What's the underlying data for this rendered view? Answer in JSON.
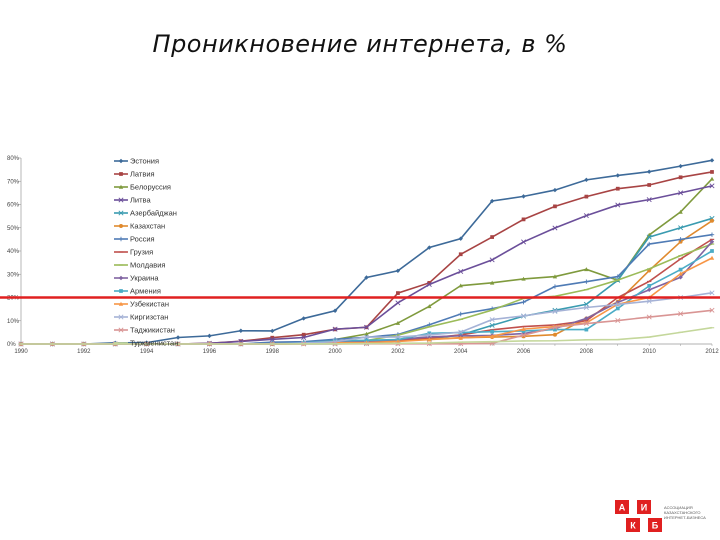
{
  "title": "Проникновение интернета, в %",
  "logo": {
    "letters": [
      "А",
      "И",
      "К",
      "Б"
    ],
    "text": "Ассоциация казахстанского интернет-бизнеса"
  },
  "threshold_color": "#e02020",
  "chart_data": {
    "type": "line",
    "title": "Проникновение интернета, в %",
    "xlabel": "",
    "ylabel": "",
    "xlim": [
      1990,
      2012
    ],
    "ylim": [
      0,
      80
    ],
    "x_ticks": [
      1990,
      1992,
      1994,
      1996,
      1998,
      2000,
      2002,
      2004,
      2006,
      2008,
      2010,
      2012
    ],
    "y_ticks": [
      "0%",
      "10%",
      "20%",
      "30%",
      "40%",
      "50%",
      "60%",
      "70%",
      "80%"
    ],
    "y_tick_values": [
      0,
      10,
      20,
      30,
      40,
      50,
      60,
      70,
      80
    ],
    "grid": false,
    "legend_position": "top-left inside plot",
    "reference_line": {
      "y": 20,
      "color": "#e02020"
    },
    "x": [
      1990,
      1991,
      1992,
      1993,
      1994,
      1995,
      1996,
      1997,
      1998,
      1999,
      2000,
      2001,
      2002,
      2003,
      2004,
      2005,
      2006,
      2007,
      2008,
      2009,
      2010,
      2011,
      2012
    ],
    "series": [
      {
        "name": "Эстония",
        "color": "#3d6a99",
        "marker": "diamond",
        "values": [
          0,
          0,
          0,
          0.5,
          0.6,
          2.8,
          3.5,
          5.7,
          5.6,
          11,
          14.3,
          28.6,
          31.5,
          41.5,
          45.3,
          61.5,
          63.5,
          66.2,
          70.6,
          72.5,
          74.1,
          76.5,
          79
        ]
      },
      {
        "name": "Латвия",
        "color": "#a84444",
        "marker": "square",
        "values": [
          0,
          0,
          0,
          0,
          0,
          0,
          0.3,
          1.2,
          2.7,
          4,
          6.3,
          7.2,
          21.9,
          26.3,
          38.6,
          46,
          53.6,
          59.2,
          63.4,
          66.8,
          68.4,
          71.7,
          74
        ]
      },
      {
        "name": "Белоруссия",
        "color": "#7f9a3d",
        "marker": "triangle",
        "values": [
          0,
          0,
          0,
          0,
          0,
          0,
          0,
          0,
          0,
          0.5,
          1.9,
          4.3,
          9,
          16.2,
          25.1,
          26.3,
          28,
          29,
          32.1,
          27.4,
          46.9,
          56.8,
          71
        ]
      },
      {
        "name": "Литва",
        "color": "#6b4f9a",
        "marker": "x",
        "values": [
          0,
          0,
          0,
          0,
          0,
          0,
          0.3,
          1.1,
          2,
          2.8,
          6.4,
          7.2,
          17.7,
          25.6,
          31.2,
          36.2,
          43.9,
          49.9,
          55.2,
          59.8,
          62.1,
          65,
          68
        ]
      },
      {
        "name": "Азербайджан",
        "color": "#3a9bb0",
        "marker": "x",
        "values": [
          0,
          0,
          0,
          0,
          0,
          0,
          0,
          0,
          0,
          0.1,
          0.1,
          0.3,
          1.5,
          2.2,
          3.9,
          8,
          12,
          14.5,
          17.1,
          27.4,
          46,
          50,
          54
        ]
      },
      {
        "name": "Казахстан",
        "color": "#e08a2e",
        "marker": "circle",
        "values": [
          0,
          0,
          0,
          0,
          0,
          0,
          0,
          0,
          0,
          0.5,
          0.7,
          1,
          1.7,
          2,
          2.7,
          3,
          3.3,
          4,
          11,
          18.2,
          31.6,
          44,
          53
        ]
      },
      {
        "name": "Россия",
        "color": "#4f7bb5",
        "marker": "plus",
        "values": [
          0,
          0,
          0,
          0,
          0,
          0,
          0,
          0,
          0.8,
          1,
          2,
          2.9,
          4.1,
          8.3,
          12.9,
          15.2,
          18,
          24.7,
          26.8,
          29,
          43,
          45,
          47
        ]
      },
      {
        "name": "Грузия",
        "color": "#c0504d",
        "marker": "dash",
        "values": [
          0,
          0,
          0,
          0,
          0,
          0,
          0,
          0,
          0,
          0.2,
          0.5,
          1,
          1.6,
          2.6,
          3.9,
          6.1,
          7.5,
          8.2,
          10,
          20,
          26.9,
          36.6,
          45
        ]
      },
      {
        "name": "Молдавия",
        "color": "#9bbb59",
        "marker": "dash",
        "values": [
          0,
          0,
          0,
          0,
          0,
          0,
          0,
          0,
          0,
          0.2,
          1.3,
          1.5,
          3.8,
          7.4,
          10.6,
          14.6,
          19.6,
          20.5,
          23.4,
          27.5,
          32.3,
          38,
          43
        ]
      },
      {
        "name": "Украина",
        "color": "#8064a2",
        "marker": "diamond",
        "values": [
          0,
          0,
          0,
          0,
          0,
          0,
          0,
          0,
          0,
          0.4,
          0.7,
          1.2,
          1.9,
          3.1,
          3.5,
          3.7,
          4.5,
          6.6,
          11,
          17.9,
          23.3,
          28.7,
          44
        ]
      },
      {
        "name": "Армения",
        "color": "#4bacc6",
        "marker": "square",
        "values": [
          0,
          0,
          0,
          0,
          0,
          0,
          0,
          0,
          0,
          0.5,
          1.3,
          1.6,
          1.9,
          4.6,
          4.9,
          5.3,
          5.6,
          6.2,
          6.2,
          15.3,
          25,
          32,
          40
        ]
      },
      {
        "name": "Узбекистан",
        "color": "#f79646",
        "marker": "triangle",
        "values": [
          0,
          0,
          0,
          0,
          0,
          0,
          0,
          0,
          0,
          0.1,
          0.5,
          0.6,
          1.1,
          1.9,
          2.6,
          3.3,
          6.4,
          7.5,
          9.1,
          17.1,
          20,
          30.2,
          37
        ]
      },
      {
        "name": "Киргизстан",
        "color": "#a5b2d6",
        "marker": "x",
        "values": [
          0,
          0,
          0,
          0,
          0,
          0,
          0,
          0,
          0,
          0.4,
          1,
          3,
          3,
          3.9,
          5.1,
          10.5,
          12.1,
          14,
          15.7,
          17,
          18.4,
          20,
          22
        ]
      },
      {
        "name": "Таджикистан",
        "color": "#d99594",
        "marker": "x",
        "values": [
          0,
          0,
          0,
          0,
          0,
          0,
          0,
          0,
          0,
          0,
          0,
          0.1,
          0.1,
          0.1,
          0.1,
          0.3,
          3.8,
          7.2,
          8.8,
          10.1,
          11.6,
          13,
          14.5
        ]
      },
      {
        "name": "Туркменистан",
        "color": "#c4d79b",
        "marker": "dash",
        "values": [
          0,
          0,
          0,
          0,
          0,
          0,
          0,
          0,
          0,
          0.1,
          0.1,
          0.2,
          0.3,
          0.4,
          0.8,
          1,
          1.3,
          1.4,
          1.8,
          1.9,
          3,
          5,
          7
        ]
      }
    ]
  }
}
